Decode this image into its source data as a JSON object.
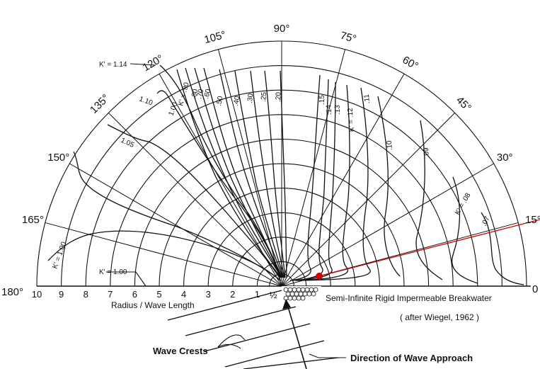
{
  "angle_labels": [
    {
      "deg": 0,
      "text": "0"
    },
    {
      "deg": 15,
      "text": "15°"
    },
    {
      "deg": 30,
      "text": "30°"
    },
    {
      "deg": 45,
      "text": "45°"
    },
    {
      "deg": 60,
      "text": "60°"
    },
    {
      "deg": 75,
      "text": "75°"
    },
    {
      "deg": 90,
      "text": "90°"
    },
    {
      "deg": 105,
      "text": "105°"
    },
    {
      "deg": 120,
      "text": "120°"
    },
    {
      "deg": 135,
      "text": "135°"
    },
    {
      "deg": 150,
      "text": "150°"
    },
    {
      "deg": 165,
      "text": "165°"
    },
    {
      "deg": 180,
      "text": "180°"
    }
  ],
  "radius_labels": [
    "10",
    "9",
    "8",
    "7",
    "6",
    "5",
    "4",
    "3",
    "2",
    "1",
    "½"
  ],
  "axis_label": "Radius / Wave Length",
  "breakwater_label": "Semi-Infinite Rigid Impermeable Breakwater",
  "source_note": "( after Wiegel, 1962 )",
  "wave_crests_label": "Wave Crests",
  "wave_direction_label": "Direction of Wave Approach",
  "coefficient_labels": {
    "k114": "K' = 1.14",
    "k110": "1.10",
    "k105": "1.05",
    "k100a": "K' = 1.00",
    "k100b": "K' = 1.00",
    "k100c": "1.00",
    "k90": "K' = .90",
    "k80": ".80",
    "k70": ".70",
    "k60": ".60",
    "k50": ".50",
    "k40": ".40",
    "k30": ".30",
    "k25": ".25",
    "k20": ".20",
    "k15": ".15",
    "k14": ".14",
    "k13": ".13",
    "k12": "K' = .12",
    "k11": ".11",
    "k10": ".10",
    "k09": ".09",
    "k08": "K' = .08",
    "k07": ".07"
  },
  "colors": {
    "ink": "#111111",
    "marker": "#d00000"
  }
}
